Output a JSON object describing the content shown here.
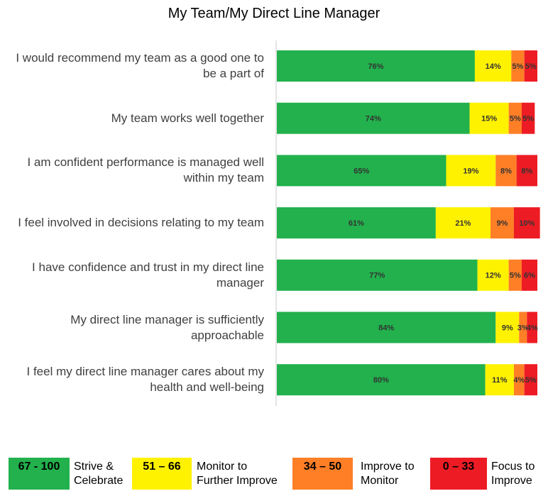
{
  "chart_data": {
    "type": "stacked-bar-horizontal",
    "title": "My Team/My Direct Line Manager",
    "categories": [
      "I would recommend my team as a good one to be a part of",
      "My team works well together",
      "I am confident performance is managed well within my team",
      "I feel involved in decisions relating to my team",
      "I have confidence and trust in my direct line manager",
      "My direct line manager is sufficiently approachable",
      "I feel my direct line manager cares about my health and well-being"
    ],
    "series": [
      {
        "name": "Strive & Celebrate",
        "range": "67 - 100",
        "color": "#22b14c",
        "values": [
          76,
          74,
          65,
          61,
          77,
          84,
          80
        ],
        "value_labels": [
          "76%",
          "74%",
          "65%",
          "61%",
          "77%",
          "84%",
          "80%"
        ]
      },
      {
        "name": "Monitor to Further Improve",
        "range": "51 – 66",
        "color": "#fff200",
        "values": [
          14,
          15,
          19,
          21,
          12,
          9,
          11
        ],
        "value_labels": [
          "14%",
          "15%",
          "19%",
          "21%",
          "12%",
          "9%",
          "11%"
        ]
      },
      {
        "name": "Improve to Monitor",
        "range": "34 – 50",
        "color": "#ff7f27",
        "values": [
          5,
          5,
          8,
          9,
          5,
          3,
          4
        ],
        "value_labels": [
          "5%",
          "5%",
          "8%",
          "9%",
          "5%",
          "3%",
          "4%"
        ]
      },
      {
        "name": "Focus to Improve",
        "range": "0 – 33",
        "color": "#ed1c24",
        "values": [
          5,
          5,
          8,
          10,
          6,
          4,
          5
        ],
        "value_labels": [
          "5%",
          "5%",
          "8%",
          "10%",
          "6%",
          "4%",
          "5%"
        ]
      }
    ]
  }
}
